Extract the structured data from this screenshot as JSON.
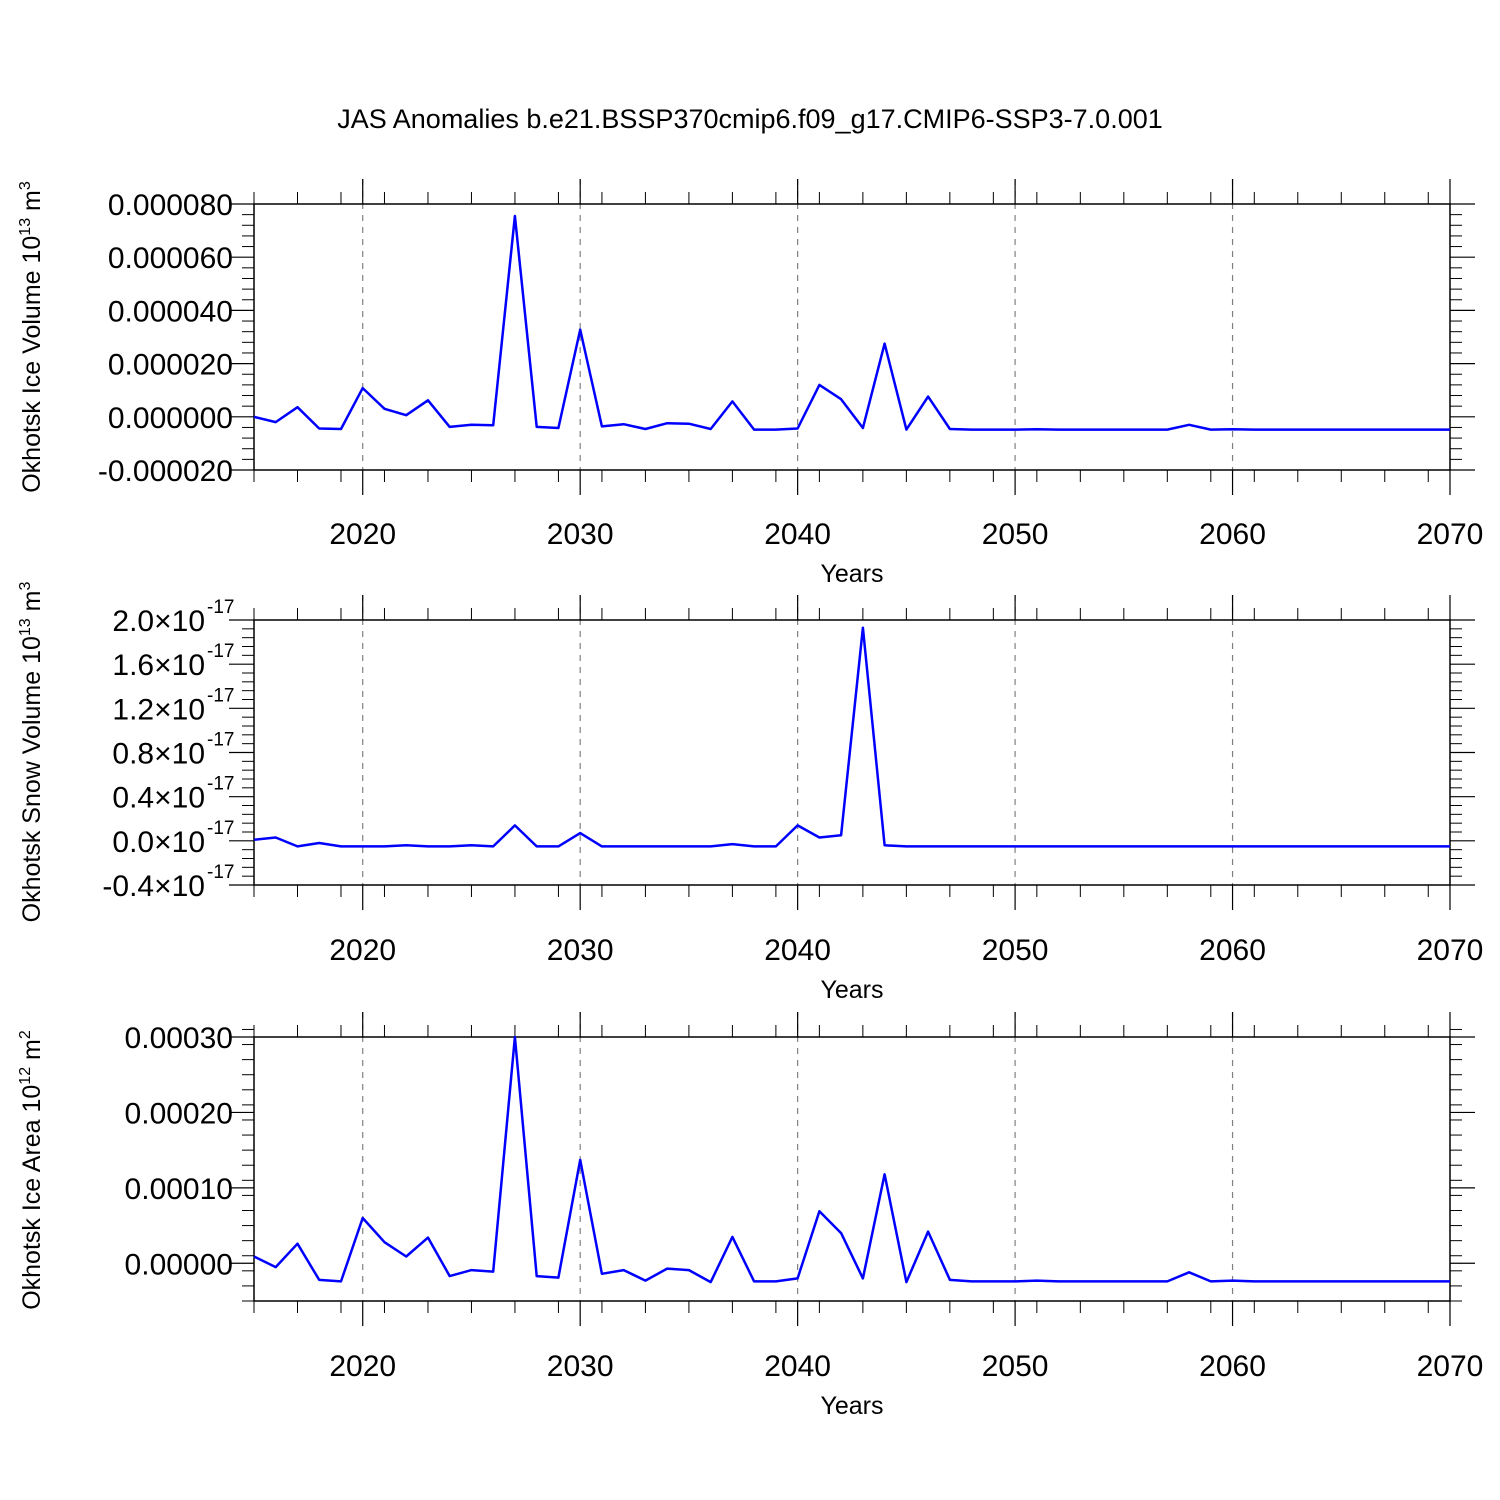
{
  "title": "JAS Anomalies b.e21.BSSP370cmip6.f09_g17.CMIP6-SSP3-7.0.001",
  "colors": {
    "line": "#0000ff",
    "axis": "#000000",
    "grid": "#808080"
  },
  "chart_data": [
    {
      "type": "line",
      "ylabel": "Okhotsk Ice Volume 10",
      "ylabel_exp": "13",
      "ylabel_unit": "m",
      "ylabel_unit_exp": "3",
      "xlabel": "Years",
      "xlim": [
        2015,
        2070
      ],
      "ylim": [
        -2e-05,
        8e-05
      ],
      "xticks": [
        2020,
        2030,
        2040,
        2050,
        2060,
        2070
      ],
      "xtick_labels": [
        "2020",
        "2030",
        "2040",
        "2050",
        "2060",
        "2070"
      ],
      "yticks": [
        -2e-05,
        0.0,
        2e-05,
        4e-05,
        6e-05,
        8e-05
      ],
      "ytick_labels": [
        "-0.000020",
        "0.000000",
        "0.000020",
        "0.000040",
        "0.000060",
        "0.000080"
      ],
      "grid": "x",
      "series": [
        {
          "x": [
            2015,
            2016,
            2017,
            2018,
            2019,
            2020,
            2021,
            2022,
            2023,
            2024,
            2025,
            2026,
            2027,
            2028,
            2029,
            2030,
            2031,
            2032,
            2033,
            2034,
            2035,
            2036,
            2037,
            2038,
            2039,
            2040,
            2041,
            2042,
            2043,
            2044,
            2045,
            2046,
            2047,
            2048,
            2049,
            2050,
            2051,
            2052,
            2053,
            2054,
            2055,
            2056,
            2057,
            2058,
            2059,
            2060,
            2061,
            2062,
            2063,
            2064,
            2065,
            2066,
            2067,
            2068,
            2069,
            2070
          ],
          "values": [
            0.0,
            -2e-06,
            3.6e-06,
            -4.4e-06,
            -4.6e-06,
            1.08e-05,
            3e-06,
            6e-07,
            6.2e-06,
            -3.8e-06,
            -3e-06,
            -3.2e-06,
            7.55e-05,
            -3.8e-06,
            -4.2e-06,
            3.28e-05,
            -3.6e-06,
            -2.8e-06,
            -4.6e-06,
            -2.4e-06,
            -2.6e-06,
            -4.6e-06,
            5.8e-06,
            -4.8e-06,
            -4.8e-06,
            -4.4e-06,
            1.2e-05,
            6.6e-06,
            -4.2e-06,
            2.75e-05,
            -4.8e-06,
            7.6e-06,
            -4.6e-06,
            -4.8e-06,
            -4.8e-06,
            -4.8e-06,
            -4.7e-06,
            -4.8e-06,
            -4.8e-06,
            -4.8e-06,
            -4.8e-06,
            -4.8e-06,
            -4.8e-06,
            -3e-06,
            -4.8e-06,
            -4.7e-06,
            -4.8e-06,
            -4.8e-06,
            -4.8e-06,
            -4.8e-06,
            -4.8e-06,
            -4.8e-06,
            -4.8e-06,
            -4.8e-06,
            -4.8e-06,
            -4.8e-06
          ]
        }
      ]
    },
    {
      "type": "line",
      "ylabel": "Okhotsk Snow Volume 10",
      "ylabel_exp": "13",
      "ylabel_unit": "m",
      "ylabel_unit_exp": "3",
      "xlabel": "Years",
      "xlim": [
        2015,
        2070
      ],
      "ylim": [
        -4e-18,
        2e-17
      ],
      "xticks": [
        2020,
        2030,
        2040,
        2050,
        2060,
        2070
      ],
      "xtick_labels": [
        "2020",
        "2030",
        "2040",
        "2050",
        "2060",
        "2070"
      ],
      "yticks": [
        -4e-18,
        0.0,
        4e-18,
        8e-18,
        1.2e-17,
        1.6e-17,
        2e-17
      ],
      "ytick_labels": [
        "-0.4×10",
        "0.0×10",
        "0.4×10",
        "0.8×10",
        "1.2×10",
        "1.6×10",
        "2.0×10"
      ],
      "ytick_label_exp": "-17",
      "grid": "x",
      "series": [
        {
          "x": [
            2015,
            2016,
            2017,
            2018,
            2019,
            2020,
            2021,
            2022,
            2023,
            2024,
            2025,
            2026,
            2027,
            2028,
            2029,
            2030,
            2031,
            2032,
            2033,
            2034,
            2035,
            2036,
            2037,
            2038,
            2039,
            2040,
            2041,
            2042,
            2043,
            2044,
            2045,
            2046,
            2047,
            2048,
            2049,
            2050,
            2051,
            2052,
            2053,
            2054,
            2055,
            2056,
            2057,
            2058,
            2059,
            2060,
            2061,
            2062,
            2063,
            2064,
            2065,
            2066,
            2067,
            2068,
            2069,
            2070
          ],
          "values": [
            1e-19,
            3e-19,
            -5e-19,
            -2e-19,
            -5e-19,
            -5e-19,
            -5e-19,
            -4e-19,
            -5e-19,
            -5e-19,
            -4e-19,
            -5e-19,
            1.4e-18,
            -5e-19,
            -5e-19,
            7e-19,
            -5e-19,
            -5e-19,
            -5e-19,
            -5e-19,
            -5e-19,
            -5e-19,
            -3e-19,
            -5e-19,
            -5e-19,
            1.4e-18,
            3e-19,
            5e-19,
            1.93e-17,
            -4e-19,
            -5e-19,
            -5e-19,
            -5e-19,
            -5e-19,
            -5e-19,
            -5e-19,
            -5e-19,
            -5e-19,
            -5e-19,
            -5e-19,
            -5e-19,
            -5e-19,
            -5e-19,
            -5e-19,
            -5e-19,
            -5e-19,
            -5e-19,
            -5e-19,
            -5e-19,
            -5e-19,
            -5e-19,
            -5e-19,
            -5e-19,
            -5e-19,
            -5e-19,
            -5e-19
          ]
        }
      ]
    },
    {
      "type": "line",
      "ylabel": "Okhotsk Ice Area 10",
      "ylabel_exp": "12",
      "ylabel_unit": "m",
      "ylabel_unit_exp": "2",
      "xlabel": "Years",
      "xlim": [
        2015,
        2070
      ],
      "ylim": [
        -5e-05,
        0.0003
      ],
      "xticks": [
        2020,
        2030,
        2040,
        2050,
        2060,
        2070
      ],
      "xtick_labels": [
        "2020",
        "2030",
        "2040",
        "2050",
        "2060",
        "2070"
      ],
      "yticks": [
        0.0,
        0.0001,
        0.0002,
        0.0003
      ],
      "ytick_labels": [
        "0.00000",
        "0.00010",
        "0.00020",
        "0.00030"
      ],
      "grid": "x",
      "series": [
        {
          "x": [
            2015,
            2016,
            2017,
            2018,
            2019,
            2020,
            2021,
            2022,
            2023,
            2024,
            2025,
            2026,
            2027,
            2028,
            2029,
            2030,
            2031,
            2032,
            2033,
            2034,
            2035,
            2036,
            2037,
            2038,
            2039,
            2040,
            2041,
            2042,
            2043,
            2044,
            2045,
            2046,
            2047,
            2048,
            2049,
            2050,
            2051,
            2052,
            2053,
            2054,
            2055,
            2056,
            2057,
            2058,
            2059,
            2060,
            2061,
            2062,
            2063,
            2064,
            2065,
            2066,
            2067,
            2068,
            2069,
            2070
          ],
          "values": [
            9e-06,
            -5e-06,
            2.6e-05,
            -2.2e-05,
            -2.4e-05,
            6e-05,
            2.8e-05,
            9e-06,
            3.4e-05,
            -1.7e-05,
            -9e-06,
            -1.1e-05,
            0.0003,
            -1.7e-05,
            -1.9e-05,
            0.000137,
            -1.4e-05,
            -9e-06,
            -2.3e-05,
            -7e-06,
            -9e-06,
            -2.5e-05,
            3.5e-05,
            -2.4e-05,
            -2.4e-05,
            -2e-05,
            6.9e-05,
            4e-05,
            -2e-05,
            0.000118,
            -2.5e-05,
            4.2e-05,
            -2.2e-05,
            -2.4e-05,
            -2.4e-05,
            -2.4e-05,
            -2.3e-05,
            -2.4e-05,
            -2.4e-05,
            -2.4e-05,
            -2.4e-05,
            -2.4e-05,
            -2.4e-05,
            -1.2e-05,
            -2.4e-05,
            -2.3e-05,
            -2.4e-05,
            -2.4e-05,
            -2.4e-05,
            -2.4e-05,
            -2.4e-05,
            -2.4e-05,
            -2.4e-05,
            -2.4e-05,
            -2.4e-05,
            -2.4e-05
          ]
        }
      ]
    }
  ]
}
